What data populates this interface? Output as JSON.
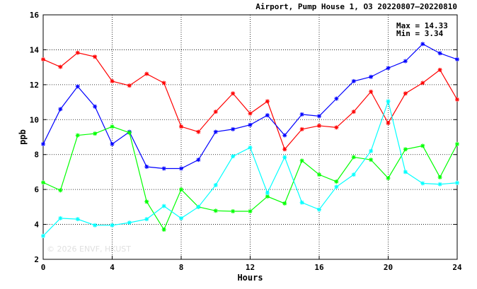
{
  "chart_data": {
    "type": "line",
    "title": "Airport, Pump House 1, O3 20220807–20220810",
    "xlabel": "Hours",
    "ylabel": "ppb",
    "xlim": [
      0,
      24
    ],
    "ylim": [
      2,
      16
    ],
    "x_ticks": [
      0,
      4,
      8,
      12,
      16,
      20,
      24
    ],
    "y_ticks": [
      2,
      4,
      6,
      8,
      10,
      12,
      14,
      16
    ],
    "grid": true,
    "legend": "none",
    "stats": {
      "max_label": "Max = 14.33",
      "min_label": "Min =  3.34"
    },
    "watermark": "© 2026  ENVF, HKUST",
    "x": [
      0,
      1,
      2,
      3,
      4,
      5,
      6,
      7,
      8,
      9,
      10,
      11,
      12,
      13,
      14,
      15,
      16,
      17,
      18,
      19,
      20,
      21,
      22,
      23,
      24
    ],
    "series": [
      {
        "color": "#ff0000",
        "values": [
          13.45,
          13.02,
          13.83,
          13.6,
          12.2,
          11.95,
          12.62,
          12.1,
          9.6,
          9.3,
          10.45,
          11.5,
          10.35,
          11.05,
          8.3,
          9.45,
          9.65,
          9.55,
          10.45,
          11.6,
          9.8,
          11.5,
          12.1,
          12.85,
          11.15
        ]
      },
      {
        "color": "#0000ff",
        "values": [
          8.6,
          10.6,
          11.9,
          10.75,
          8.6,
          9.3,
          7.3,
          7.2,
          7.2,
          7.7,
          9.3,
          9.45,
          9.7,
          10.25,
          9.1,
          10.3,
          10.2,
          11.2,
          12.2,
          12.45,
          12.95,
          13.35,
          14.33,
          13.8,
          13.45
        ]
      },
      {
        "color": "#00ff00",
        "values": [
          6.4,
          5.95,
          9.1,
          9.2,
          9.6,
          9.25,
          5.3,
          3.7,
          6.0,
          5.0,
          4.78,
          4.75,
          4.75,
          5.6,
          5.2,
          7.65,
          6.85,
          6.45,
          7.85,
          7.7,
          6.65,
          8.3,
          8.5,
          6.7,
          8.6
        ]
      },
      {
        "color": "#00ffff",
        "values": [
          3.34,
          4.35,
          4.3,
          3.95,
          3.95,
          4.1,
          4.3,
          5.05,
          4.35,
          5.0,
          6.25,
          7.9,
          8.4,
          5.8,
          7.85,
          5.25,
          4.85,
          6.15,
          6.85,
          8.2,
          11.05,
          7.0,
          6.35,
          6.3,
          6.38
        ]
      }
    ]
  }
}
